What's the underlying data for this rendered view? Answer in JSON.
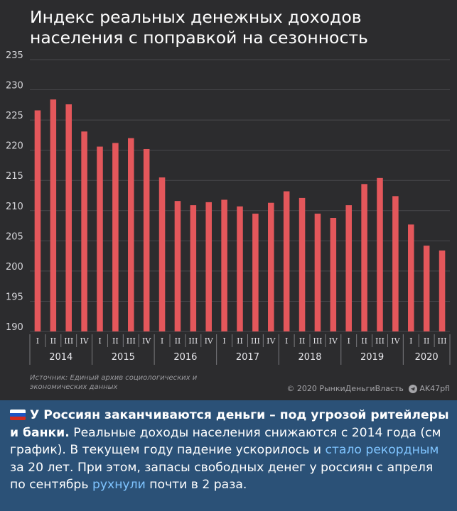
{
  "chart_data": {
    "type": "bar",
    "title": "Индекс реальных денежных доходов\nнаселения с поправкой на сезонность",
    "ylim": [
      190,
      235
    ],
    "y_ticks": [
      190,
      195,
      200,
      205,
      210,
      215,
      220,
      225,
      230,
      235
    ],
    "grid": true,
    "bar_color": "#e4575b",
    "categories": [
      "I",
      "II",
      "III",
      "IV",
      "I",
      "II",
      "III",
      "IV",
      "I",
      "II",
      "III",
      "IV",
      "I",
      "II",
      "III",
      "IV",
      "I",
      "II",
      "III",
      "IV",
      "I",
      "II",
      "III",
      "IV",
      "I",
      "II",
      "III"
    ],
    "years": [
      "2014",
      "2015",
      "2016",
      "2017",
      "2018",
      "2019",
      "2020"
    ],
    "values": [
      226.6,
      228.4,
      227.6,
      223.1,
      220.6,
      221.2,
      222.0,
      220.2,
      215.5,
      211.6,
      210.9,
      211.4,
      211.8,
      210.7,
      209.5,
      211.3,
      213.2,
      212.1,
      209.5,
      208.8,
      210.9,
      214.4,
      215.4,
      212.4,
      207.7,
      204.2,
      203.4
    ]
  },
  "source": "Источник: Единый архив социологических и экономических данных",
  "credits": {
    "copyright": "© 2020  РынкиДеньгиВласть",
    "channel": "AK47pfl"
  },
  "post": {
    "bold_text": "У Россиян заканчиваются деньги – под угрозой ритейлеры и банки.",
    "text_1": " Реальные доходы населения снижаются с 2014 года (см график). В текущем году падение ускорилось и ",
    "link_1": "стало рекордным",
    "text_2": " за 20 лет. При этом, запасы свободных денег у россиян с апреля по сентябрь ",
    "link_2": "рухнули",
    "text_3": " почти в 2 раза."
  },
  "colors": {
    "bar": "#e4575b",
    "chart_bg": "#2c2c2e",
    "post_bg": "#2b5177",
    "link": "#7fc4ff"
  }
}
